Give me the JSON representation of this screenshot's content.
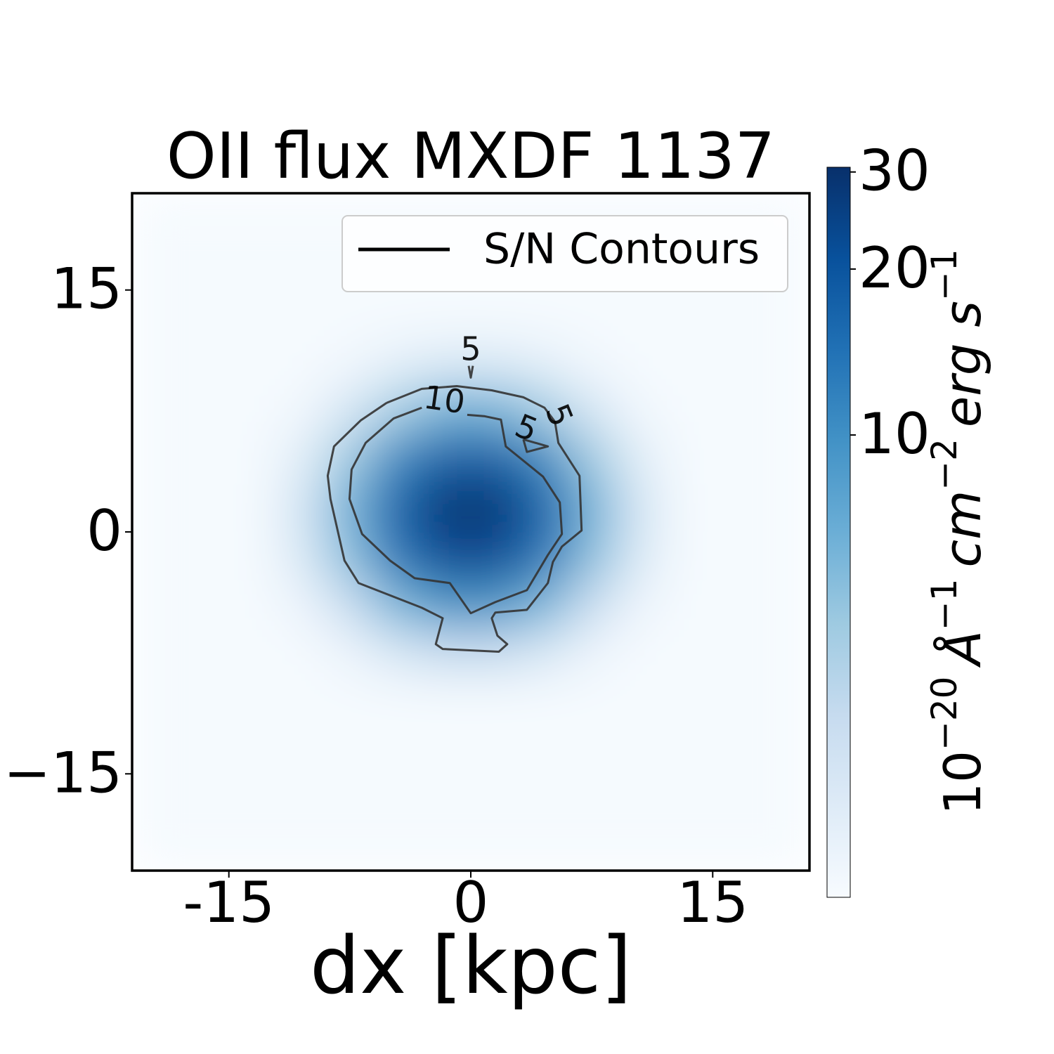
{
  "chart_data": {
    "type": "heatmap",
    "title": "OII flux MXDF 1137",
    "xlabel": "dx [kpc]",
    "xlim": [
      -21,
      21
    ],
    "ylim": [
      -21,
      21
    ],
    "xticks": [
      -15,
      0,
      15
    ],
    "yticks": [
      15,
      0,
      {
        "value": -15,
        "label": "−15"
      }
    ],
    "x": [
      -19.5,
      -16.5,
      -13.5,
      -10.5,
      -7.5,
      -4.5,
      -1.5,
      1.5,
      4.5,
      7.5,
      10.5,
      13.5,
      16.5,
      19.5
    ],
    "y": [
      -19.5,
      -16.5,
      -13.5,
      -10.5,
      -7.5,
      -4.5,
      -1.5,
      1.5,
      4.5,
      7.5,
      10.5,
      13.5,
      16.5,
      19.5
    ],
    "z": [
      [
        1.5,
        1.5,
        1.5,
        1.5,
        1.5,
        1.5,
        1.5,
        1.5,
        1.5,
        1.5,
        1.5,
        1.5,
        1.5,
        1.5
      ],
      [
        1.5,
        1.5,
        1.5,
        1.5,
        1.5,
        1.5,
        1.5,
        1.5,
        1.5,
        1.5,
        1.5,
        1.5,
        1.5,
        1.5
      ],
      [
        1.5,
        1.5,
        1.5,
        1.5,
        1.5,
        1.5,
        1.5,
        1.5,
        1.5,
        1.5,
        1.5,
        1.5,
        1.5,
        1.5
      ],
      [
        1.5,
        1.5,
        1.5,
        1.5,
        1.5,
        1.5,
        1.5,
        1.5,
        1.5,
        1.5,
        1.5,
        1.5,
        1.5,
        1.5
      ],
      [
        1.5,
        1.5,
        1.5,
        1.5,
        1.7,
        2.3,
        2.9,
        2.9,
        2.3,
        1.7,
        1.5,
        1.5,
        1.5,
        1.5
      ],
      [
        1.5,
        1.5,
        1.5,
        1.7,
        2.9,
        6.0,
        9.3,
        9.3,
        6.0,
        2.9,
        1.7,
        1.5,
        1.5,
        1.5
      ],
      [
        1.5,
        1.5,
        1.5,
        2.2,
        5.3,
        13.3,
        22.3,
        22.3,
        13.3,
        5.3,
        2.2,
        1.5,
        1.5,
        1.5
      ],
      [
        1.5,
        1.5,
        1.5,
        2.4,
        6.4,
        16.7,
        28.2,
        28.2,
        16.7,
        6.4,
        2.4,
        1.5,
        1.5,
        1.5
      ],
      [
        1.5,
        1.5,
        1.5,
        2.0,
        4.5,
        10.9,
        17.9,
        17.9,
        10.9,
        4.5,
        2.0,
        1.5,
        1.5,
        1.5
      ],
      [
        1.5,
        1.5,
        1.5,
        1.6,
        2.4,
        4.3,
        6.4,
        6.4,
        4.3,
        2.4,
        1.6,
        1.5,
        1.5,
        1.5
      ],
      [
        1.5,
        1.5,
        1.5,
        1.5,
        1.6,
        1.9,
        2.2,
        2.2,
        1.9,
        1.6,
        1.5,
        1.5,
        1.5,
        1.5
      ],
      [
        1.5,
        1.5,
        1.5,
        1.5,
        1.5,
        1.5,
        1.5,
        1.5,
        1.5,
        1.5,
        1.5,
        1.5,
        1.5,
        1.5
      ],
      [
        1.5,
        1.5,
        1.5,
        1.5,
        1.5,
        1.5,
        1.5,
        1.5,
        1.5,
        1.5,
        1.5,
        1.5,
        1.5,
        1.5
      ],
      [
        1.5,
        1.5,
        1.5,
        1.5,
        1.5,
        1.5,
        1.5,
        1.5,
        1.5,
        1.5,
        1.5,
        1.5,
        1.5,
        1.5
      ]
    ],
    "colormap": [
      "#f7fbff",
      "#deebf7",
      "#c6dbef",
      "#9ecae1",
      "#6baed6",
      "#4292c6",
      "#2171b5",
      "#08519c",
      "#08306b"
    ],
    "color_scale": "log",
    "clim": [
      1.45,
      30.6
    ],
    "cticks": [
      10,
      20,
      30
    ],
    "colorbar_label": [
      "10",
      "−20",
      "Å",
      "−1",
      "cm",
      "−2",
      "erg s",
      "−1"
    ],
    "contours": [
      {
        "level": 5,
        "color": "#333333",
        "x": [
          -0.13,
          0,
          0.13
        ],
        "y": [
          10.3,
          9.57,
          10.3
        ]
      },
      {
        "level": 5,
        "color": "#333333",
        "x": [
          -5.22,
          -3.04,
          -0.87,
          1.3,
          3.26,
          4.57,
          5.22,
          5.43,
          6.74,
          6.87,
          5.65,
          5.09,
          4.78,
          3.48,
          1.52,
          1.3,
          1.65,
          2.26,
          1.74,
          -1.74,
          -2.17,
          -1.74,
          -3.04,
          -6.96,
          -7.83,
          -8.7,
          -8.87,
          -8.48,
          -6.83,
          -5.22
        ],
        "y": [
          8.0,
          8.87,
          9.04,
          8.78,
          8.35,
          7.7,
          6.83,
          5.52,
          3.48,
          0.09,
          -0.91,
          -1.87,
          -3.17,
          -4.83,
          -5.0,
          -5.35,
          -6.43,
          -6.96,
          -7.43,
          -7.26,
          -6.96,
          -5.35,
          -4.7,
          -3.17,
          -1.78,
          2.04,
          3.48,
          5.3,
          6.91,
          8.0
        ]
      },
      {
        "level": 10,
        "color": "#333333",
        "x": [
          -3.04,
          -4.78,
          -6.52,
          -7.39,
          -7.52,
          -6.74,
          -5.0,
          -3.48,
          -1.3,
          0,
          1.52,
          3.48,
          4.78,
          5.65,
          5.52,
          4.48,
          2.17,
          1.87,
          0.87,
          -0.22
        ],
        "y": [
          7.7,
          7.04,
          5.52,
          3.87,
          2.04,
          -0.13,
          -1.78,
          -2.87,
          -3.17,
          -5.04,
          -4.35,
          -3.61,
          -1.43,
          -0.13,
          1.83,
          3.43,
          5.3,
          6.96,
          7.17,
          7.26
        ]
      },
      {
        "level": 5,
        "color": "#333333",
        "x": [
          3.26,
          4.78,
          3.48,
          3.26
        ],
        "y": [
          5.74,
          5.3,
          4.96,
          5.74
        ]
      }
    ],
    "legend": {
      "label": "S/N Contours",
      "color": "#000000",
      "loc": "upper right"
    }
  }
}
